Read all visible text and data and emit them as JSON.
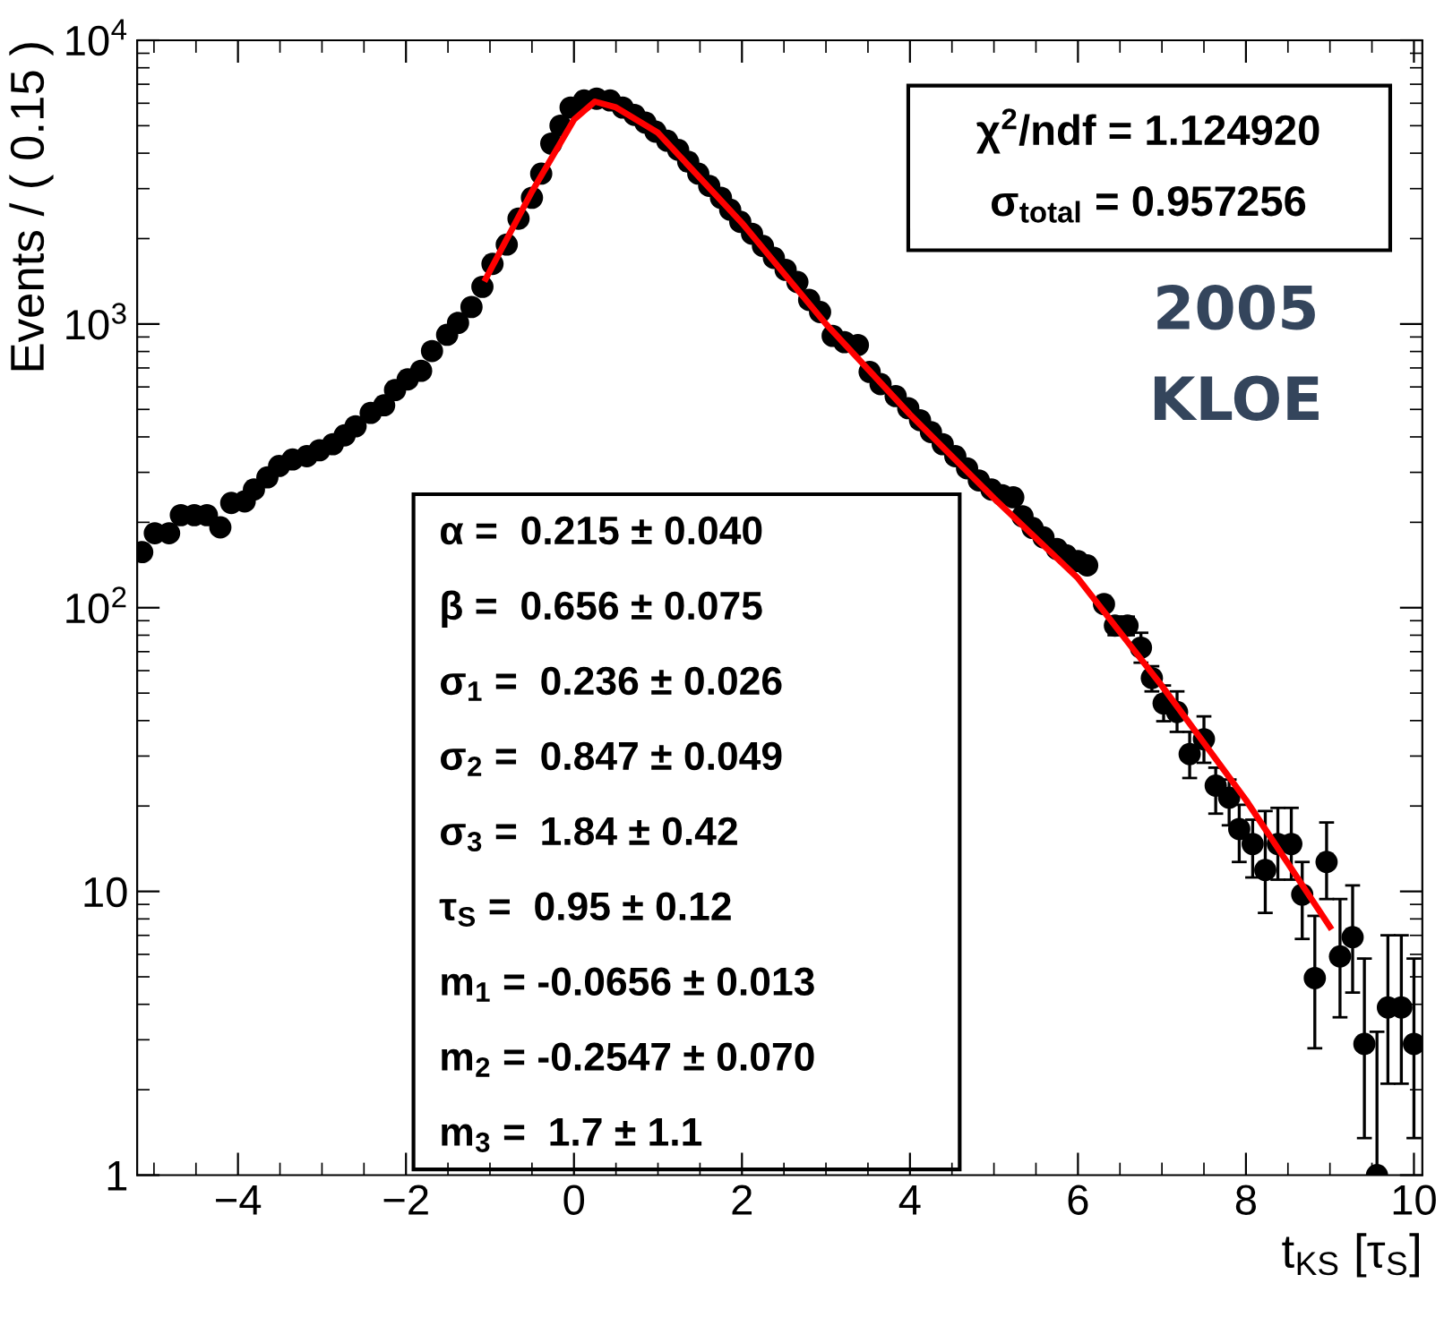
{
  "chart_data": {
    "type": "scatter",
    "xlabel": "t$_{KS}$ [τ$_{S}$]",
    "ylabel": "Events / ( 0.15 )",
    "log": "y",
    "xlim": [
      -5.2,
      10.1
    ],
    "ylim": [
      1,
      10000
    ],
    "xticks": [
      {
        "value": -4,
        "label": "−4"
      },
      {
        "value": -2,
        "label": "−2"
      },
      0,
      2,
      4,
      6,
      8,
      10
    ],
    "yticks": [
      1,
      10,
      {
        "value": 100,
        "label": "10$^{2}$"
      },
      {
        "value": 1000,
        "label": "10$^{3}$"
      },
      {
        "value": 10000,
        "label": "10$^{4}$"
      }
    ],
    "grid": false,
    "legend": false,
    "annotations": [
      "χ$^{2}$/ndf = 1.124920",
      "σ$_{total}$ = 0.957256",
      "2005",
      "KLOE",
      "α =  0.215 ± 0.040",
      "β =  0.656 ± 0.075",
      "σ$_{1}$ =  0.236 ± 0.026",
      "σ$_{2}$ =  0.847 ± 0.049",
      "σ$_{3}$ =  1.84 ± 0.42",
      "τ$_{S}$ =  0.95 ± 0.12",
      "m$_{1}$ = -0.0656 ± 0.013",
      "m$_{2}$ = -0.2547 ± 0.070",
      "m$_{3}$ =  1.7 ± 1.1"
    ],
    "series": [
      {
        "marker": "circle",
        "color": "#000000",
        "x": [
          -5.14,
          -4.99,
          -4.82,
          -4.68,
          -4.52,
          -4.37,
          -4.21,
          -4.08,
          -3.92,
          -3.81,
          -3.65,
          -3.51,
          -3.35,
          -3.18,
          -3.03,
          -2.87,
          -2.73,
          -2.6,
          -2.42,
          -2.26,
          -2.13,
          -1.98,
          -1.82,
          -1.69,
          -1.51,
          -1.38,
          -1.22,
          -1.09,
          -0.97,
          -0.8,
          -0.66,
          -0.5,
          -0.39,
          -0.27,
          -0.16,
          -0.04,
          0.12,
          0.27,
          0.43,
          0.58,
          0.72,
          0.85,
          0.97,
          1.11,
          1.24,
          1.36,
          1.48,
          1.61,
          1.75,
          1.86,
          1.98,
          2.12,
          2.25,
          2.38,
          2.52,
          2.66,
          2.8,
          2.93,
          3.08,
          3.22,
          3.38,
          3.52,
          3.65,
          3.83,
          3.98,
          4.12,
          4.25,
          4.39,
          4.54,
          4.68,
          4.82,
          4.97,
          5.1,
          5.23,
          5.34,
          5.46,
          5.59,
          5.75,
          5.86,
          6.0,
          6.11,
          6.31
        ],
        "values": [
          157,
          183,
          183,
          212,
          212,
          212,
          192,
          234,
          237,
          261,
          288,
          316,
          333,
          342,
          359,
          377,
          405,
          436,
          486,
          517,
          585,
          638,
          684,
          803,
          916,
          1009,
          1148,
          1352,
          1629,
          1905,
          2350,
          2786,
          3388,
          4325,
          5000,
          5794,
          6138,
          6223,
          6138,
          5794,
          5458,
          5129,
          4764,
          4426,
          4111,
          3733,
          3388,
          3069,
          2786,
          2529,
          2291,
          2080,
          1884,
          1710,
          1552,
          1406,
          1216,
          1102,
          908,
          863,
          843,
          678,
          614,
          557,
          505,
          458,
          416,
          377,
          342,
          310,
          281,
          261,
          249,
          245,
          210,
          191,
          177,
          161,
          153,
          146,
          141,
          103
        ]
      },
      {
        "marker": "circle",
        "color": "#000000",
        "x": [
          6.44,
          6.59,
          6.75,
          6.88,
          7.02,
          7.18,
          7.33,
          7.5,
          7.64,
          7.8,
          7.92,
          8.08,
          8.23,
          8.38,
          8.54,
          8.67,
          8.82,
          8.96,
          9.12,
          9.27,
          9.41,
          9.56,
          9.69,
          9.85,
          10.0
        ],
        "values": [
          86.5,
          86.5,
          72.3,
          56.5,
          46,
          42.9,
          30.5,
          34.4,
          23.6,
          21.4,
          16.6,
          14.7,
          11.9,
          14.7,
          14.7,
          9.75,
          4.95,
          12.7,
          5.9,
          6.9,
          2.9,
          1,
          3.9,
          3.9,
          2.9
        ],
        "errors": [
          [
            80,
            93
          ],
          [
            80,
            93
          ],
          [
            64,
            81.6
          ],
          [
            50.7,
            62.2
          ],
          [
            39.8,
            53.2
          ],
          [
            36.5,
            50.7
          ],
          [
            25.1,
            36.5
          ],
          [
            28.4,
            41.4
          ],
          [
            18.8,
            27.3
          ],
          [
            17.1,
            24.8
          ],
          [
            12.7,
            20.2
          ],
          [
            11.2,
            17.9
          ],
          [
            8.4,
            19.2
          ],
          [
            11,
            19.7
          ],
          [
            11,
            19.7
          ],
          [
            6.8,
            12.7
          ],
          [
            2.8,
            8.2
          ],
          [
            9.4,
            17.5
          ],
          [
            3.6,
            9.4
          ],
          [
            4.4,
            10.5
          ],
          [
            1.35,
            5.8
          ],
          [
            1,
            3.2
          ],
          [
            2.1,
            7
          ],
          [
            2.1,
            7
          ],
          [
            1.35,
            5.8
          ]
        ]
      },
      {
        "type": "line",
        "color": "#ff0000",
        "line_style": "solid",
        "x": [
          -1.05,
          -0.5,
          0,
          0.25,
          0.5,
          1,
          2,
          3,
          4,
          5,
          6,
          7,
          8,
          9
        ],
        "values": [
          1443,
          2930,
          5250,
          6080,
          5800,
          4720,
          2270,
          1000,
          480,
          243,
          127,
          53,
          21,
          7.5
        ]
      }
    ]
  }
}
